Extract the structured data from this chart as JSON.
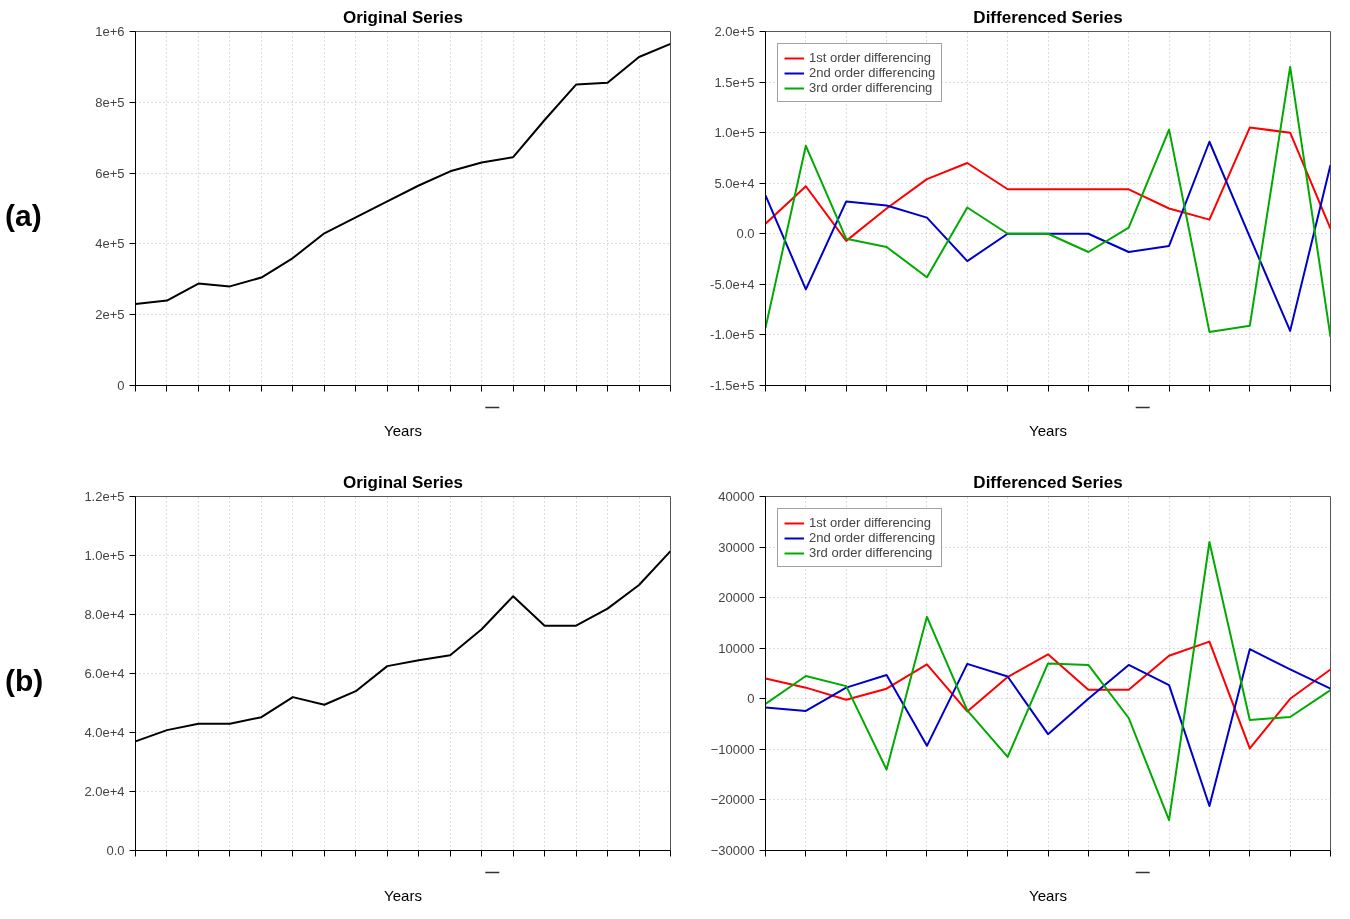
{
  "chart_data": [
    {
      "type": "line",
      "title": "Original Series",
      "xlabel": "Years",
      "annotations": [
        "(a)"
      ],
      "categories": [
        null,
        null,
        null,
        null,
        null,
        null,
        null,
        null,
        null,
        null,
        null,
        null,
        null,
        null,
        null,
        null,
        null,
        null
      ],
      "series": [
        {
          "color": "#000000",
          "values": [
            230000,
            240000,
            288000,
            280000,
            305000,
            360000,
            430000,
            475000,
            520000,
            565000,
            605000,
            630000,
            645000,
            750000,
            850000,
            855000,
            928000,
            965000
          ]
        }
      ],
      "ylim": [
        0,
        1000000
      ],
      "yticks": [
        {
          "value": 0,
          "label": "0"
        },
        {
          "value": 200000,
          "label": "2e+5"
        },
        {
          "value": 400000,
          "label": "4e+5"
        },
        {
          "value": 600000,
          "label": "6e+5"
        },
        {
          "value": 800000,
          "label": "8e+5"
        },
        {
          "value": 1000000,
          "label": "1e+6"
        }
      ],
      "grid": true
    },
    {
      "type": "line",
      "title": "Differenced Series",
      "xlabel": "Years",
      "categories": [
        null,
        null,
        null,
        null,
        null,
        null,
        null,
        null,
        null,
        null,
        null,
        null,
        null,
        null,
        null
      ],
      "series": [
        {
          "name": "1st order differencing",
          "color": "#ff0000",
          "values": [
            10000,
            47000,
            -7000,
            25000,
            54000,
            70000,
            44000,
            44000,
            44000,
            44000,
            25000,
            14000,
            105000,
            100000,
            5000
          ]
        },
        {
          "name": "2nd order differencing",
          "color": "#0000cc",
          "values": [
            38000,
            -55000,
            32000,
            28000,
            16000,
            -27000,
            0,
            0,
            0,
            -18000,
            -12000,
            91000,
            -3000,
            -96000,
            68000
          ]
        },
        {
          "name": "3rd order differencing",
          "color": "#00aa00",
          "values": [
            -93000,
            87000,
            -5000,
            -13000,
            -43000,
            26000,
            0,
            0,
            -18000,
            6000,
            103000,
            -97000,
            -91000,
            165000,
            -102000
          ]
        }
      ],
      "ylim": [
        -150000,
        200000
      ],
      "yticks": [
        {
          "value": -150000,
          "label": "-1.5e+5"
        },
        {
          "value": -100000,
          "label": "-1.0e+5"
        },
        {
          "value": -50000,
          "label": "-5.0e+4"
        },
        {
          "value": 0,
          "label": "0.0"
        },
        {
          "value": 50000,
          "label": "5.0e+4"
        },
        {
          "value": 100000,
          "label": "1.0e+5"
        },
        {
          "value": 150000,
          "label": "1.5e+5"
        },
        {
          "value": 200000,
          "label": "2.0e+5"
        }
      ],
      "grid": true,
      "legend": "top left"
    },
    {
      "type": "line",
      "title": "Original Series",
      "xlabel": "Years",
      "annotations": [
        "(b)"
      ],
      "categories": [
        null,
        null,
        null,
        null,
        null,
        null,
        null,
        null,
        null,
        null,
        null,
        null,
        null,
        null,
        null,
        null,
        null,
        null
      ],
      "series": [
        {
          "color": "#000000",
          "values": [
            37000,
            40800,
            43000,
            43000,
            45200,
            52000,
            49400,
            54000,
            62500,
            64500,
            66200,
            75000,
            86200,
            76200,
            76200,
            82000,
            90000,
            101500
          ]
        }
      ],
      "ylim": [
        0,
        120000
      ],
      "yticks": [
        {
          "value": 0,
          "label": "0.0"
        },
        {
          "value": 20000,
          "label": "2.0e+4"
        },
        {
          "value": 40000,
          "label": "4.0e+4"
        },
        {
          "value": 60000,
          "label": "6.0e+4"
        },
        {
          "value": 80000,
          "label": "8.0e+4"
        },
        {
          "value": 100000,
          "label": "1.0e+5"
        },
        {
          "value": 120000,
          "label": "1.2e+5"
        }
      ],
      "grid": true
    },
    {
      "type": "line",
      "title": "Differenced Series",
      "xlabel": "Years",
      "categories": [
        null,
        null,
        null,
        null,
        null,
        null,
        null,
        null,
        null,
        null,
        null,
        null,
        null,
        null,
        null
      ],
      "series": [
        {
          "name": "1st order differencing",
          "color": "#ff0000",
          "values": [
            4000,
            2200,
            -200,
            2000,
            6800,
            -2500,
            4300,
            8800,
            1800,
            1800,
            8500,
            11300,
            -9800,
            0,
            5800
          ]
        },
        {
          "name": "2nd order differencing",
          "color": "#0000cc",
          "values": [
            -1700,
            -2400,
            2200,
            4700,
            -9300,
            6900,
            4400,
            -7000,
            0,
            6700,
            2700,
            -21200,
            9800,
            5800,
            2000
          ]
        },
        {
          "name": "3rd order differencing",
          "color": "#00aa00",
          "values": [
            -1000,
            4500,
            2500,
            -14000,
            16200,
            -2300,
            -11500,
            7000,
            6700,
            -3800,
            -24000,
            31000,
            -4200,
            -3600,
            1700
          ]
        }
      ],
      "ylim": [
        -30000,
        40000
      ],
      "yticks": [
        -30000,
        -20000,
        -10000,
        0,
        10000,
        20000,
        30000,
        40000
      ],
      "grid": true,
      "legend": "top left"
    }
  ]
}
